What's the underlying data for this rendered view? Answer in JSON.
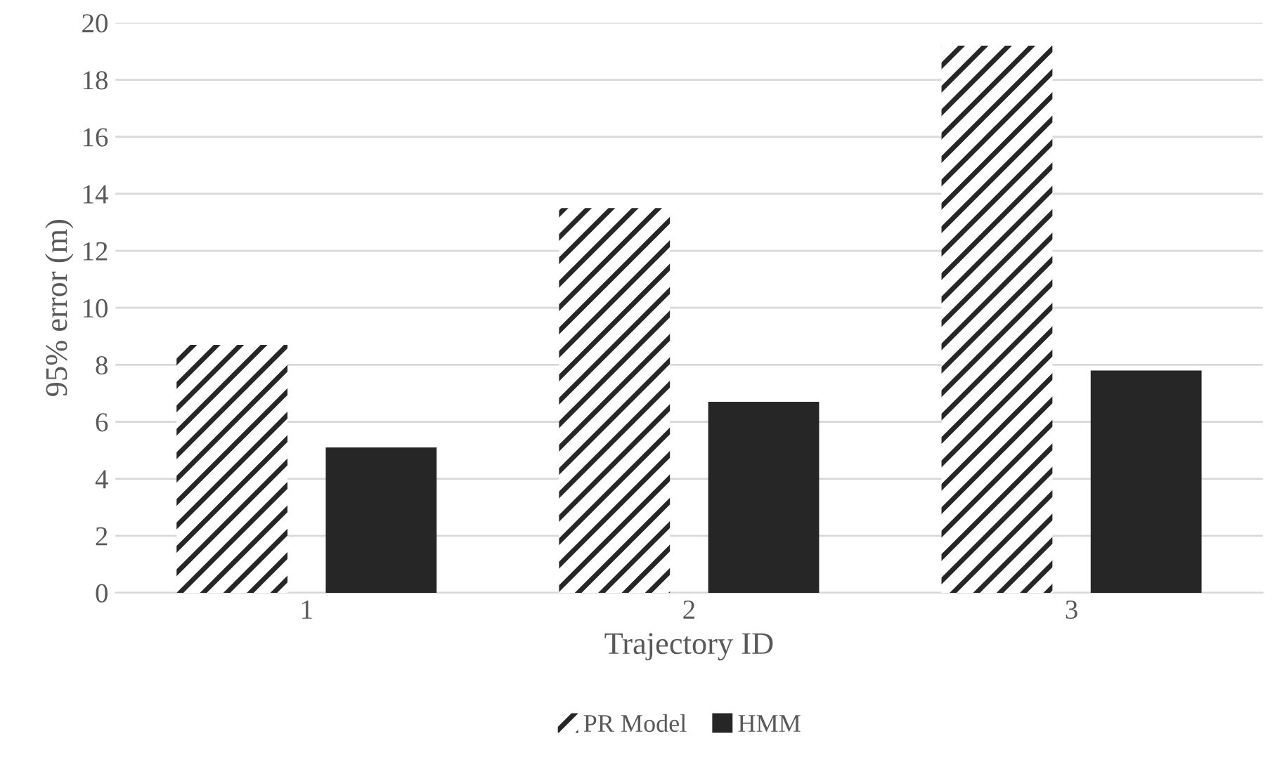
{
  "chart_data": {
    "type": "bar",
    "xlabel": "Trajectory ID",
    "ylabel": "95% error (m)",
    "categories": [
      "1",
      "2",
      "3"
    ],
    "series": [
      {
        "name": "PR Model",
        "color": "#262626",
        "values": [
          8.7,
          13.5,
          19.2
        ]
      },
      {
        "name": "HMM",
        "color": "#262626",
        "values": [
          5.1,
          6.7,
          7.8
        ]
      }
    ],
    "ylim": [
      0,
      20
    ],
    "yticks": [
      0,
      2,
      4,
      6,
      8,
      10,
      12,
      14,
      16,
      18,
      20
    ],
    "grid": "y",
    "legend": "bottom"
  }
}
